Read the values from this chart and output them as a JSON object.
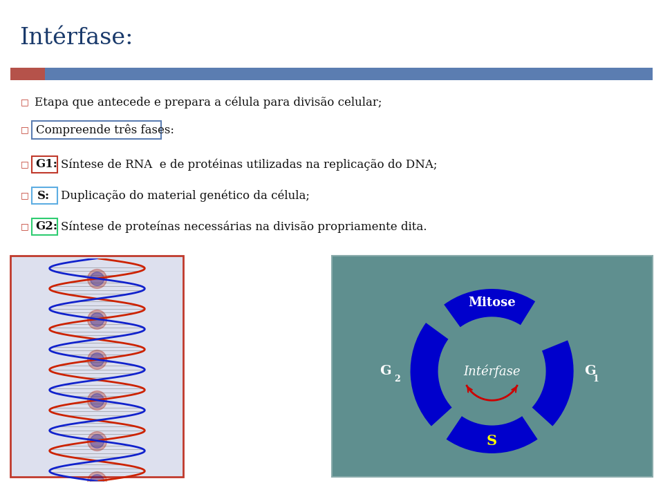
{
  "title": "Intérfase:",
  "title_color": "#1a3a6b",
  "title_fontsize": 26,
  "bg_color": "#ffffff",
  "header_bar_blue": "#5b7db1",
  "header_bar_red": "#b5524a",
  "bullet_color": "#c0392b",
  "bullet1": "Etapa que antecede e prepara a célula para divisão celular;",
  "bullet2": "Compreende três fases:",
  "bullet2_box_color": "#5b7db1",
  "g1_label": "G1:",
  "g1_box_color": "#c0392b",
  "g1_text": "Síntese de RNA  e de protéinas utilizadas na replicação do DNA;",
  "s_label": "S:",
  "s_box_color": "#5dade2",
  "s_text": "Duplicação do material genético da célula;",
  "g2_label": "G2:",
  "g2_box_color": "#2ecc71",
  "g2_text": "Síntese de proteínas necessárias na divisão propriamente dita.",
  "diagram_bg": "#5f8f8f",
  "diagram_ring_color": "#0000cc",
  "diagram_center_text": "Intérfase",
  "diagram_mitose": "Mitose",
  "diagram_S": "S",
  "diagram_S_color": "#ffff00",
  "diagram_text_color": "#ffffff",
  "diagram_arc_color": "#cc0000",
  "font_family": "DejaVu Serif",
  "text_fontsize": 12
}
